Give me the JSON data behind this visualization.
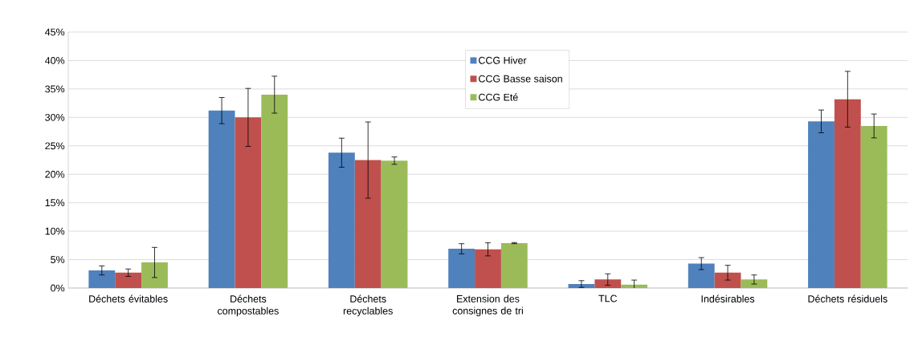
{
  "chart_data": {
    "type": "bar",
    "categories": [
      "Déchets évitables",
      "Déchets compostables",
      "Déchets recyclables",
      "Extension des consignes de tri",
      "TLC",
      "Indésirables",
      "Déchets résiduels"
    ],
    "series": [
      {
        "name": "CCG Hiver",
        "color": "#4f81bd",
        "values": [
          3.1,
          31.2,
          23.8,
          6.9,
          0.7,
          4.3,
          29.3
        ],
        "errors": [
          0.8,
          2.3,
          2.55,
          0.9,
          0.6,
          1.05,
          2.0
        ]
      },
      {
        "name": "CCG Basse saison",
        "color": "#c0504d",
        "values": [
          2.7,
          30.0,
          22.5,
          6.8,
          1.5,
          2.7,
          33.2
        ],
        "errors": [
          0.65,
          5.1,
          6.7,
          1.15,
          1.0,
          1.3,
          4.9
        ]
      },
      {
        "name": "CCG Eté",
        "color": "#9bbb59",
        "values": [
          4.5,
          34.0,
          22.4,
          7.9,
          0.6,
          1.5,
          28.5
        ],
        "errors": [
          2.65,
          3.25,
          0.65,
          0.1,
          0.8,
          0.8,
          2.1
        ]
      }
    ],
    "ylim": [
      0,
      45
    ],
    "yticks": [
      {
        "value": 0,
        "label": "0%"
      },
      {
        "value": 5,
        "label": "5%"
      },
      {
        "value": 10,
        "label": "10%"
      },
      {
        "value": 15,
        "label": "15%"
      },
      {
        "value": 20,
        "label": "20%"
      },
      {
        "value": 25,
        "label": "25%"
      },
      {
        "value": 30,
        "label": "30%"
      },
      {
        "value": 35,
        "label": "35%"
      },
      {
        "value": 40,
        "label": "40%"
      },
      {
        "value": 45,
        "label": "45%"
      }
    ],
    "grid": "y",
    "legend": "top"
  }
}
